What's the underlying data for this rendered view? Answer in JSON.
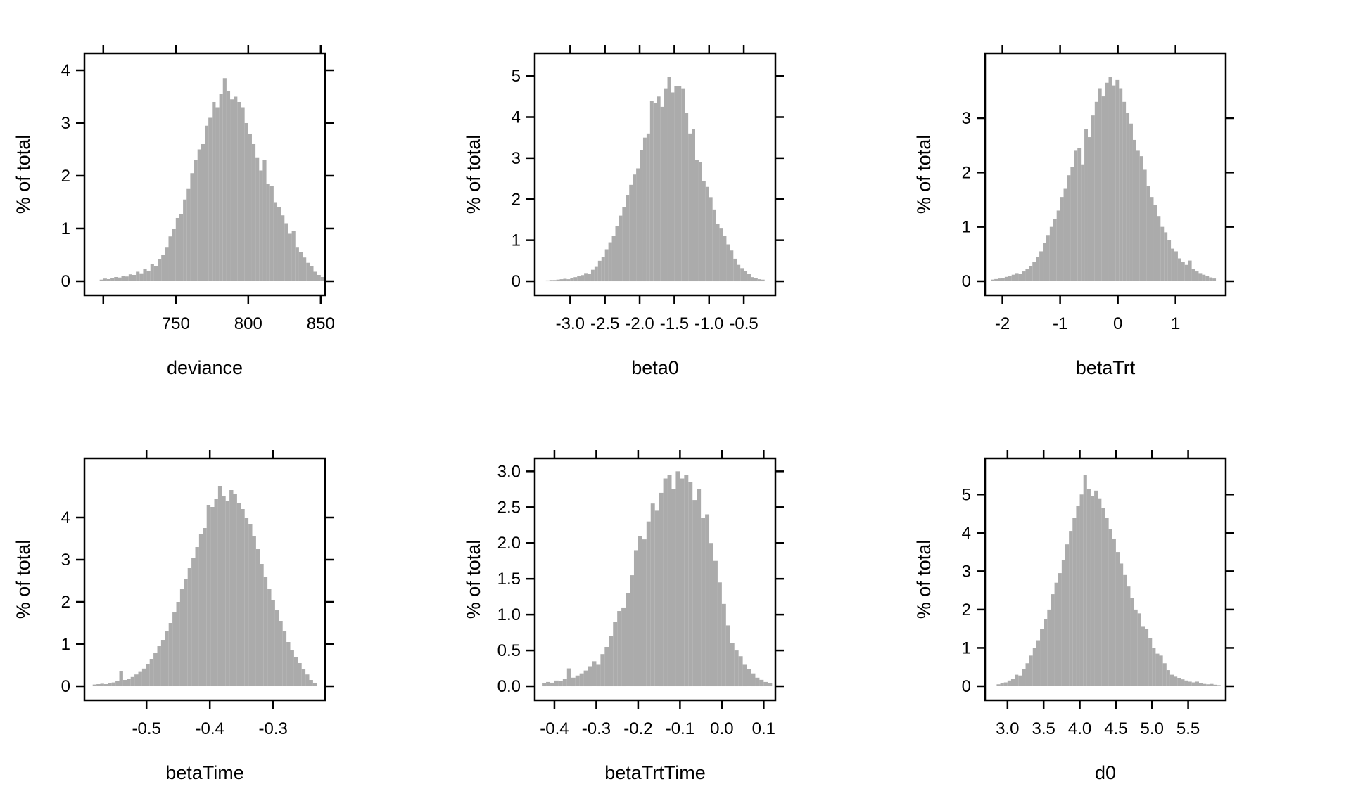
{
  "figure": {
    "ylabel": "% of total",
    "bar_color": "#ABABAB",
    "frame_color": "#000000",
    "text_color": "#000000",
    "background": "#ffffff"
  },
  "chart_data": [
    {
      "type": "bar",
      "title": "",
      "xlabel": "deviance",
      "ylabel": "% of total",
      "xlim": [
        687,
        853
      ],
      "ylim": [
        -0.267,
        4.32
      ],
      "x_ticks": [
        {
          "v": 700,
          "label": ""
        },
        {
          "v": 750,
          "label": "750"
        },
        {
          "v": 800,
          "label": "800"
        },
        {
          "v": 850,
          "label": "850"
        }
      ],
      "y_ticks": [
        {
          "v": 0,
          "label": "0"
        },
        {
          "v": 1,
          "label": "1"
        },
        {
          "v": 2,
          "label": "2"
        },
        {
          "v": 3,
          "label": "3"
        },
        {
          "v": 4,
          "label": "4"
        }
      ],
      "bins": {
        "start": 697.5,
        "width": 2.5,
        "heights": [
          0.03,
          0.05,
          0.04,
          0.06,
          0.08,
          0.07,
          0.1,
          0.09,
          0.13,
          0.12,
          0.18,
          0.15,
          0.24,
          0.2,
          0.32,
          0.28,
          0.42,
          0.5,
          0.65,
          0.85,
          1.0,
          1.2,
          1.28,
          1.55,
          1.75,
          2.05,
          2.3,
          2.5,
          2.6,
          2.95,
          3.1,
          3.4,
          3.3,
          3.55,
          3.85,
          3.6,
          3.45,
          3.5,
          3.4,
          3.3,
          3.0,
          2.8,
          2.6,
          2.35,
          2.1,
          2.3,
          1.85,
          1.8,
          1.5,
          1.4,
          1.25,
          1.1,
          0.9,
          0.95,
          0.65,
          0.55,
          0.45,
          0.35,
          0.28,
          0.18,
          0.12,
          0.08
        ]
      }
    },
    {
      "type": "bar",
      "title": "",
      "xlabel": "beta0",
      "ylabel": "% of total",
      "xlim": [
        -3.51,
        -0.045
      ],
      "ylim": [
        -0.342,
        5.55
      ],
      "x_ticks": [
        {
          "v": -3.0,
          "label": "-3.0"
        },
        {
          "v": -2.5,
          "label": "-2.5"
        },
        {
          "v": -2.0,
          "label": "-2.0"
        },
        {
          "v": -1.5,
          "label": "-1.5"
        },
        {
          "v": -1.0,
          "label": "-1.0"
        },
        {
          "v": -0.5,
          "label": "-0.5"
        }
      ],
      "y_ticks": [
        {
          "v": 0,
          "label": "0"
        },
        {
          "v": 1,
          "label": "1"
        },
        {
          "v": 2,
          "label": "2"
        },
        {
          "v": 3,
          "label": "3"
        },
        {
          "v": 4,
          "label": "4"
        },
        {
          "v": 5,
          "label": "5"
        }
      ],
      "bins": {
        "start": -3.35,
        "width": 0.05,
        "heights": [
          0.02,
          0.03,
          0.03,
          0.04,
          0.05,
          0.06,
          0.05,
          0.08,
          0.1,
          0.12,
          0.15,
          0.2,
          0.18,
          0.28,
          0.35,
          0.5,
          0.6,
          0.78,
          0.95,
          1.1,
          1.35,
          1.6,
          1.8,
          2.1,
          2.35,
          2.6,
          2.75,
          3.2,
          3.5,
          3.6,
          4.4,
          4.35,
          4.5,
          4.25,
          4.7,
          4.97,
          4.6,
          4.75,
          4.75,
          4.7,
          4.1,
          3.6,
          3.7,
          2.95,
          2.9,
          2.45,
          2.3,
          2.05,
          1.75,
          1.4,
          1.3,
          1.1,
          0.9,
          0.75,
          0.55,
          0.4,
          0.32,
          0.25,
          0.18,
          0.1,
          0.07,
          0.05,
          0.04
        ]
      }
    },
    {
      "type": "bar",
      "title": "",
      "xlabel": "betaTrt",
      "ylabel": "% of total",
      "xlim": [
        -2.3,
        1.87
      ],
      "ylim": [
        -0.259,
        4.19
      ],
      "x_ticks": [
        {
          "v": -2,
          "label": "-2"
        },
        {
          "v": -1,
          "label": "-1"
        },
        {
          "v": 0,
          "label": "0"
        },
        {
          "v": 1,
          "label": "1"
        }
      ],
      "y_ticks": [
        {
          "v": 0,
          "label": "0"
        },
        {
          "v": 1,
          "label": "1"
        },
        {
          "v": 2,
          "label": "2"
        },
        {
          "v": 3,
          "label": "3"
        }
      ],
      "bins": {
        "start": -2.2,
        "width": 0.06,
        "heights": [
          0.03,
          0.04,
          0.05,
          0.06,
          0.08,
          0.09,
          0.12,
          0.15,
          0.13,
          0.18,
          0.22,
          0.28,
          0.35,
          0.45,
          0.55,
          0.7,
          0.85,
          1.0,
          1.15,
          1.3,
          1.55,
          1.7,
          1.95,
          2.1,
          2.4,
          2.45,
          2.15,
          2.8,
          2.65,
          3.05,
          3.3,
          3.55,
          3.4,
          3.65,
          3.75,
          3.6,
          3.7,
          3.55,
          3.3,
          3.1,
          2.9,
          2.6,
          2.4,
          2.3,
          2.05,
          1.75,
          1.55,
          1.4,
          1.2,
          1.0,
          0.9,
          0.75,
          0.6,
          0.55,
          0.42,
          0.35,
          0.3,
          0.38,
          0.22,
          0.18,
          0.15,
          0.12,
          0.1,
          0.07,
          0.05
        ]
      }
    },
    {
      "type": "bar",
      "title": "",
      "xlabel": "betaTime",
      "ylabel": "% of total",
      "xlim": [
        -0.598,
        -0.218
      ],
      "ylim": [
        -0.333,
        5.4
      ],
      "x_ticks": [
        {
          "v": -0.5,
          "label": "-0.5"
        },
        {
          "v": -0.4,
          "label": "-0.4"
        },
        {
          "v": -0.3,
          "label": "-0.3"
        }
      ],
      "y_ticks": [
        {
          "v": 0,
          "label": "0"
        },
        {
          "v": 1,
          "label": "1"
        },
        {
          "v": 2,
          "label": "2"
        },
        {
          "v": 3,
          "label": "3"
        },
        {
          "v": 4,
          "label": "4"
        }
      ],
      "bins": {
        "start": -0.585,
        "width": 0.006,
        "heights": [
          0.04,
          0.05,
          0.06,
          0.05,
          0.08,
          0.09,
          0.12,
          0.35,
          0.15,
          0.18,
          0.22,
          0.28,
          0.34,
          0.42,
          0.52,
          0.65,
          0.8,
          0.95,
          1.1,
          1.3,
          1.5,
          1.75,
          2.0,
          2.3,
          2.55,
          2.8,
          3.05,
          3.3,
          3.6,
          3.75,
          4.3,
          4.25,
          4.45,
          4.75,
          4.5,
          4.4,
          4.65,
          4.55,
          4.35,
          4.2,
          4.0,
          3.85,
          3.55,
          3.25,
          2.9,
          2.6,
          2.3,
          2.05,
          1.8,
          1.55,
          1.3,
          1.05,
          0.85,
          0.7,
          0.55,
          0.4,
          0.28,
          0.15,
          0.08
        ]
      }
    },
    {
      "type": "bar",
      "title": "",
      "xlabel": "betaTrtTime",
      "ylabel": "% of total",
      "xlim": [
        -0.447,
        0.128
      ],
      "ylim": [
        -0.196,
        3.18
      ],
      "x_ticks": [
        {
          "v": -0.4,
          "label": "-0.4"
        },
        {
          "v": -0.3,
          "label": "-0.3"
        },
        {
          "v": -0.2,
          "label": "-0.2"
        },
        {
          "v": -0.1,
          "label": "-0.1"
        },
        {
          "v": 0.0,
          "label": "0.0"
        },
        {
          "v": 0.1,
          "label": "0.1"
        }
      ],
      "y_ticks": [
        {
          "v": 0.0,
          "label": "0.0"
        },
        {
          "v": 0.5,
          "label": "0.5"
        },
        {
          "v": 1.0,
          "label": "1.0"
        },
        {
          "v": 1.5,
          "label": "1.5"
        },
        {
          "v": 2.0,
          "label": "2.0"
        },
        {
          "v": 2.5,
          "label": "2.5"
        },
        {
          "v": 3.0,
          "label": "3.0"
        }
      ],
      "bins": {
        "start": -0.43,
        "width": 0.01,
        "heights": [
          0.04,
          0.06,
          0.05,
          0.08,
          0.07,
          0.1,
          0.25,
          0.12,
          0.15,
          0.18,
          0.22,
          0.28,
          0.35,
          0.3,
          0.45,
          0.55,
          0.7,
          0.9,
          1.05,
          1.1,
          1.3,
          1.55,
          1.9,
          2.1,
          2.05,
          2.3,
          2.55,
          2.45,
          2.7,
          2.9,
          2.95,
          2.75,
          3.0,
          2.9,
          2.95,
          2.85,
          2.6,
          2.75,
          2.35,
          2.4,
          2.0,
          1.75,
          1.45,
          1.15,
          0.85,
          0.6,
          0.5,
          0.42,
          0.3,
          0.24,
          0.18,
          0.12,
          0.09,
          0.06,
          0.04
        ]
      }
    },
    {
      "type": "bar",
      "title": "",
      "xlabel": "d0",
      "ylabel": "% of total",
      "xlim": [
        2.69,
        6.02
      ],
      "ylim": [
        -0.367,
        5.94
      ],
      "x_ticks": [
        {
          "v": 3.0,
          "label": "3.0"
        },
        {
          "v": 3.5,
          "label": "3.5"
        },
        {
          "v": 4.0,
          "label": "4.0"
        },
        {
          "v": 4.5,
          "label": "4.5"
        },
        {
          "v": 5.0,
          "label": "5.0"
        },
        {
          "v": 5.5,
          "label": "5.5"
        }
      ],
      "y_ticks": [
        {
          "v": 0,
          "label": "0"
        },
        {
          "v": 1,
          "label": "1"
        },
        {
          "v": 2,
          "label": "2"
        },
        {
          "v": 3,
          "label": "3"
        },
        {
          "v": 4,
          "label": "4"
        },
        {
          "v": 5,
          "label": "5"
        }
      ],
      "bins": {
        "start": 2.85,
        "width": 0.05,
        "heights": [
          0.05,
          0.08,
          0.1,
          0.15,
          0.2,
          0.3,
          0.28,
          0.45,
          0.6,
          0.8,
          1.0,
          1.2,
          1.5,
          1.75,
          2.0,
          2.4,
          2.7,
          2.95,
          3.3,
          3.7,
          4.05,
          4.4,
          4.7,
          5.0,
          5.5,
          5.15,
          4.95,
          5.1,
          4.9,
          4.65,
          4.4,
          4.1,
          3.85,
          3.5,
          3.2,
          2.9,
          2.6,
          2.3,
          2.0,
          1.9,
          1.55,
          1.5,
          1.25,
          1.0,
          0.85,
          0.8,
          0.6,
          0.42,
          0.3,
          0.25,
          0.22,
          0.18,
          0.15,
          0.12,
          0.1,
          0.12,
          0.08,
          0.06,
          0.05,
          0.06,
          0.04,
          0.03
        ]
      }
    }
  ]
}
